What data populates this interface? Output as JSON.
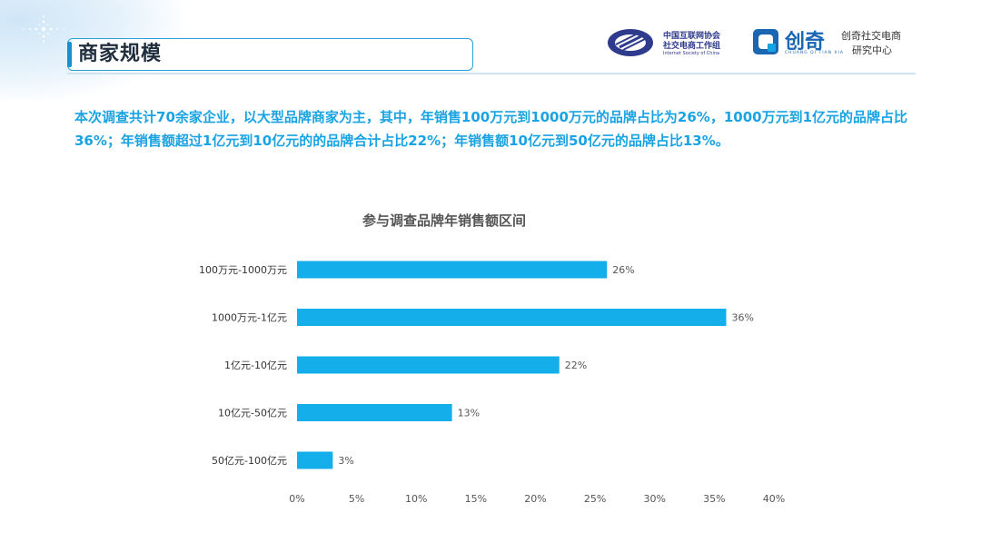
{
  "header": {
    "title": "商家规模",
    "logo_left": {
      "line1": "中国互联网协会",
      "line2": "社交电商工作组",
      "line3": "Internet Society of China"
    },
    "logo_right": {
      "brand": "创奇",
      "brand_sub": "CHUANG QI TIAN XIA",
      "line1": "创奇社交电商",
      "line2": "研究中心"
    }
  },
  "description": "本次调查共计70余家企业，以大型品牌商家为主，其中，年销售100万元到1000万元的品牌占比为26%，1000万元到1亿元的品牌占比36%；年销售额超过1亿元到10亿元的的品牌合计占比22%；年销售额10亿元到50亿元的品牌占比13%。",
  "colors": {
    "bar": "#14aeea",
    "accent": "#1aa3e2",
    "title_border": "#2a9fd8"
  },
  "chart_data": {
    "type": "bar",
    "orientation": "horizontal",
    "title": "参与调查品牌年销售额区间",
    "categories": [
      "100万元-1000万元",
      "1000万元-1亿元",
      "1亿元-10亿元",
      "10亿元-50亿元",
      "50亿元-100亿元"
    ],
    "values": [
      26,
      36,
      22,
      13,
      3
    ],
    "value_labels": [
      "26%",
      "36%",
      "22%",
      "13%",
      "3%"
    ],
    "xlim": [
      0,
      40
    ],
    "xticks": [
      0,
      5,
      10,
      15,
      20,
      25,
      30,
      35,
      40
    ],
    "xtick_labels": [
      "0%",
      "5%",
      "10%",
      "15%",
      "20%",
      "25%",
      "30%",
      "35%",
      "40%"
    ],
    "grid": false,
    "legend": "none"
  }
}
